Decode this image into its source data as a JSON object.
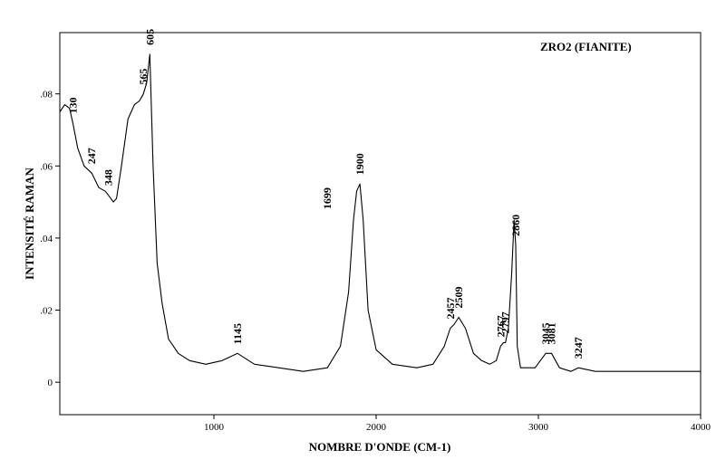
{
  "chart_data": {
    "type": "line",
    "title": "ZRO2 (FIANITE)",
    "xlabel": "NOMBRE D'ONDE (CM-1)",
    "ylabel": "INTENSITÉ RAMAN",
    "xlim": [
      50,
      4000
    ],
    "ylim": [
      -0.009,
      0.097
    ],
    "x_ticks": [
      {
        "value": 1000,
        "label": "1000"
      },
      {
        "value": 2000,
        "label": "2000"
      },
      {
        "value": 3000,
        "label": "3000"
      },
      {
        "value": 4000,
        "label": "4000"
      }
    ],
    "y_ticks": [
      {
        "value": 0,
        "label": "0"
      },
      {
        "value": 0.02,
        "label": ".02"
      },
      {
        "value": 0.04,
        "label": ".04"
      },
      {
        "value": 0.06,
        "label": ".06"
      },
      {
        "value": 0.08,
        "label": ".08"
      }
    ],
    "grid": false,
    "series": [
      {
        "x": [
          50,
          80,
          110,
          130,
          160,
          200,
          247,
          290,
          330,
          348,
          380,
          400,
          430,
          470,
          510,
          540,
          565,
          585,
          605,
          625,
          650,
          680,
          720,
          780,
          850,
          950,
          1050,
          1145,
          1250,
          1400,
          1550,
          1699,
          1780,
          1830,
          1860,
          1880,
          1900,
          1920,
          1950,
          2000,
          2100,
          2250,
          2350,
          2420,
          2457,
          2480,
          2509,
          2550,
          2600,
          2650,
          2700,
          2740,
          2767,
          2785,
          2797,
          2815,
          2835,
          2850,
          2860,
          2870,
          2890,
          2920,
          2980,
          3045,
          3081,
          3130,
          3200,
          3247,
          3350,
          3500,
          3700,
          3900,
          4000
        ],
        "y": [
          0.075,
          0.077,
          0.076,
          0.072,
          0.065,
          0.06,
          0.058,
          0.054,
          0.053,
          0.052,
          0.05,
          0.051,
          0.06,
          0.073,
          0.077,
          0.078,
          0.08,
          0.083,
          0.091,
          0.06,
          0.033,
          0.022,
          0.012,
          0.008,
          0.006,
          0.005,
          0.006,
          0.008,
          0.005,
          0.004,
          0.003,
          0.004,
          0.01,
          0.025,
          0.045,
          0.053,
          0.055,
          0.045,
          0.02,
          0.009,
          0.005,
          0.004,
          0.005,
          0.01,
          0.015,
          0.016,
          0.018,
          0.015,
          0.008,
          0.006,
          0.005,
          0.006,
          0.01,
          0.011,
          0.011,
          0.015,
          0.03,
          0.045,
          0.038,
          0.01,
          0.004,
          0.004,
          0.004,
          0.008,
          0.008,
          0.004,
          0.003,
          0.004,
          0.003,
          0.003,
          0.003,
          0.003,
          0.003
        ]
      }
    ],
    "annotations": [
      {
        "x": 130,
        "label": "130"
      },
      {
        "x": 247,
        "label": "247"
      },
      {
        "x": 348,
        "label": "348"
      },
      {
        "x": 565,
        "label": "565"
      },
      {
        "x": 605,
        "label": "605"
      },
      {
        "x": 1145,
        "label": "1145"
      },
      {
        "x": 1699,
        "label": "1699"
      },
      {
        "x": 1900,
        "label": "1900"
      },
      {
        "x": 2457,
        "label": "2457"
      },
      {
        "x": 2509,
        "label": "2509"
      },
      {
        "x": 2767,
        "label": "2767"
      },
      {
        "x": 2797,
        "label": "2797"
      },
      {
        "x": 2860,
        "label": "2860"
      },
      {
        "x": 3045,
        "label": "3045"
      },
      {
        "x": 3081,
        "label": "3081"
      },
      {
        "x": 3247,
        "label": "3247"
      }
    ]
  }
}
